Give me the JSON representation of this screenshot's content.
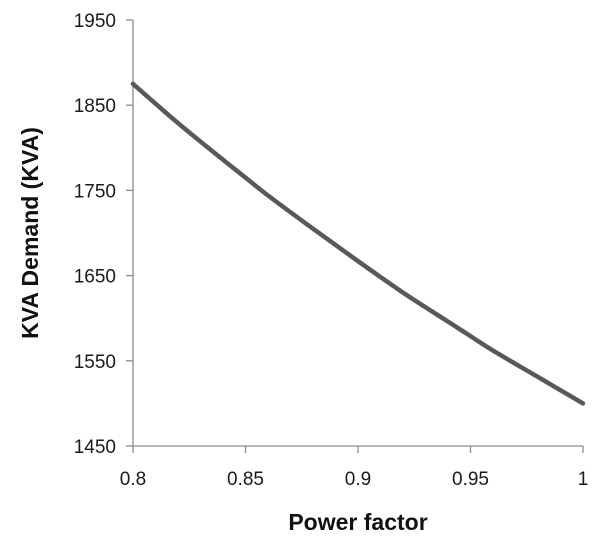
{
  "chart_data": {
    "type": "line",
    "title": "",
    "xlabel": "Power factor",
    "ylabel": "KVA Demand (KVA)",
    "xlim": [
      0.8,
      1
    ],
    "ylim": [
      1450,
      1950
    ],
    "x_ticks": [
      0.8,
      0.85,
      0.9,
      0.95,
      1
    ],
    "x_tick_labels": [
      "0.8",
      "0.85",
      "0.9",
      "0.95",
      "1"
    ],
    "y_ticks": [
      1450,
      1550,
      1650,
      1750,
      1850,
      1950
    ],
    "y_tick_labels": [
      "1450",
      "1550",
      "1650",
      "1750",
      "1850",
      "1950"
    ],
    "grid": false,
    "legend": "none",
    "series": [
      {
        "color": "#595959",
        "x": [
          0.8,
          0.82,
          0.84,
          0.85,
          0.86,
          0.88,
          0.9,
          0.92,
          0.94,
          0.95,
          0.96,
          0.98,
          1.0
        ],
        "y": [
          1875,
          1829,
          1786,
          1765,
          1744,
          1705,
          1667,
          1630,
          1596,
          1579,
          1562,
          1531,
          1500
        ]
      }
    ]
  }
}
